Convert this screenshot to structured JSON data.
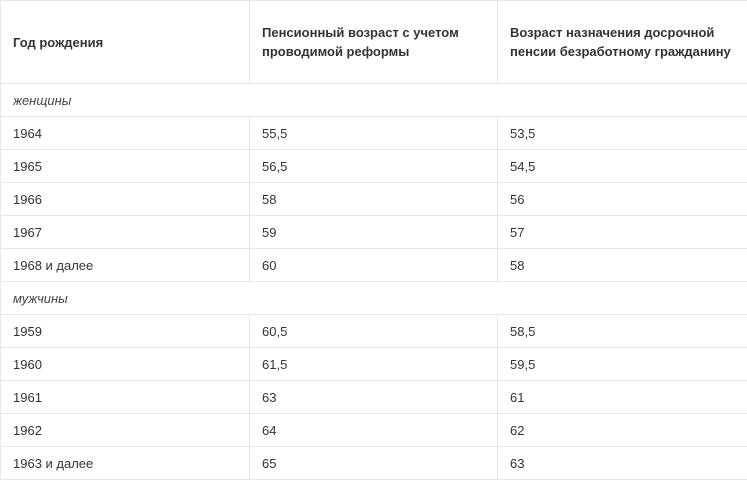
{
  "table": {
    "headers": [
      "Год рождения",
      "Пенсионный возраст с учетом проводимой реформы",
      "Возраст назначения досрочной пенсии безработному гражданину"
    ],
    "sections": [
      {
        "label": "женщины",
        "rows": [
          [
            "1964",
            "55,5",
            "53,5"
          ],
          [
            "1965",
            "56,5",
            "54,5"
          ],
          [
            "1966",
            "58",
            "56"
          ],
          [
            "1967",
            "59",
            "57"
          ],
          [
            "1968 и далее",
            "60",
            "58"
          ]
        ]
      },
      {
        "label": "мужчины",
        "rows": [
          [
            "1959",
            "60,5",
            "58,5"
          ],
          [
            "1960",
            "61,5",
            "59,5"
          ],
          [
            "1961",
            "63",
            "61"
          ],
          [
            "1962",
            "64",
            "62"
          ],
          [
            "1963 и далее",
            "65",
            "63"
          ]
        ]
      }
    ]
  }
}
